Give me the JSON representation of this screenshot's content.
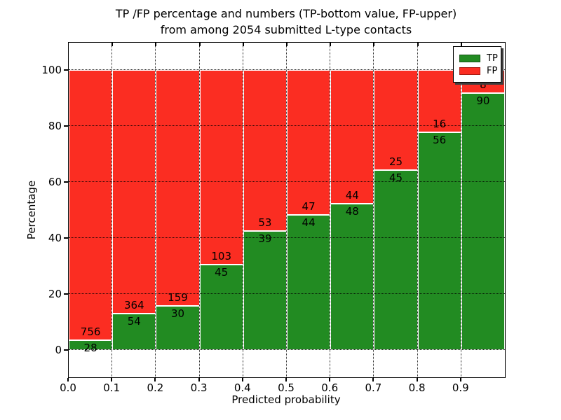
{
  "title": {
    "line1": "TP /FP percentage and numbers (TP-bottom value, FP-upper)",
    "line2": "from among 2054 submitted L-type contacts"
  },
  "chart_data": {
    "type": "bar",
    "stacked": true,
    "title": "TP /FP percentage and numbers (TP-bottom value, FP-upper) from among 2054 submitted L-type contacts",
    "xlabel": "Predicted probability",
    "ylabel": "Percentage",
    "total_contacts": 2054,
    "xlim": [
      0.0,
      1.0
    ],
    "ylim": [
      -10,
      110
    ],
    "bin_width": 0.1,
    "bin_starts": [
      0.0,
      0.1,
      0.2,
      0.3,
      0.4,
      0.5,
      0.6,
      0.7,
      0.8,
      0.9
    ],
    "x_tick_labels": [
      "0.0",
      "0.1",
      "0.2",
      "0.3",
      "0.4",
      "0.5",
      "0.6",
      "0.7",
      "0.8",
      "0.9"
    ],
    "y_tick_values": [
      0,
      20,
      40,
      60,
      80,
      100
    ],
    "grid": "dotted both axes, drawn above bars",
    "series": [
      {
        "name": "TP",
        "color": "#228b22",
        "counts": [
          28,
          54,
          30,
          45,
          39,
          44,
          48,
          45,
          56,
          90
        ]
      },
      {
        "name": "FP",
        "color": "#fb2d22",
        "counts": [
          756,
          364,
          159,
          103,
          53,
          47,
          44,
          25,
          16,
          8
        ]
      }
    ],
    "tp_percent": [
      3.57,
      12.92,
      15.87,
      30.41,
      42.39,
      48.35,
      52.17,
      64.29,
      77.78,
      91.84
    ],
    "legend": {
      "position": "upper right",
      "entries": [
        "TP",
        "FP"
      ]
    },
    "colors": {
      "tp": "#228b22",
      "fp": "#fb2d22",
      "tp_border": "#145214",
      "fp_border": "#a81c12"
    }
  }
}
